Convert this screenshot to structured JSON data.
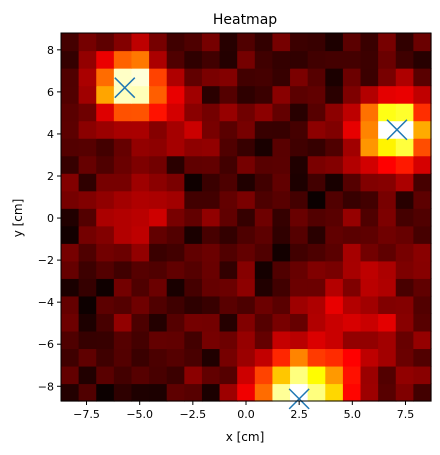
{
  "chart_data": {
    "type": "heatmap",
    "title": "Heatmap",
    "xlabel": "x [cm]",
    "ylabel": "y [cm]",
    "xlim": [
      -8.7,
      8.7
    ],
    "ylim": [
      -8.7,
      8.8
    ],
    "xticks": [
      -7.5,
      -5.0,
      -2.5,
      0.0,
      2.5,
      5.0,
      7.5
    ],
    "xtick_labels": [
      "−7.5",
      "−5.0",
      "−2.5",
      "0.0",
      "2.5",
      "5.0",
      "7.5"
    ],
    "yticks": [
      -8,
      -6,
      -4,
      -2,
      0,
      2,
      4,
      6,
      8
    ],
    "ytick_labels": [
      "−8",
      "−6",
      "−4",
      "−2",
      "0",
      "2",
      "4",
      "6",
      "8"
    ],
    "grid": false,
    "colormap": "hot",
    "grid_shape": [
      21,
      21
    ],
    "sources": [
      {
        "center": [
          -5.5,
          6.3
        ],
        "spread": 1.0,
        "amplitude": 1.0
      },
      {
        "center": [
          7.0,
          4.2
        ],
        "spread": 1.1,
        "amplitude": 1.0
      },
      {
        "center": [
          2.6,
          -8.6
        ],
        "spread": 1.5,
        "amplitude": 0.95
      },
      {
        "center": [
          5.5,
          -4.5
        ],
        "spread": 1.8,
        "amplitude": 0.18
      },
      {
        "center": [
          -5.2,
          0.5
        ],
        "spread": 1.2,
        "amplitude": 0.2
      },
      {
        "center": [
          -2.5,
          4.5
        ],
        "spread": 1.0,
        "amplitude": 0.15
      }
    ],
    "markers": [
      {
        "x": -5.7,
        "y": 6.2,
        "symbol": "x",
        "color": "#1f77b4"
      },
      {
        "x": 7.1,
        "y": 4.2,
        "symbol": "x",
        "color": "#1f77b4"
      },
      {
        "x": 2.5,
        "y": -8.6,
        "symbol": "x",
        "color": "#1f77b4"
      }
    ]
  }
}
